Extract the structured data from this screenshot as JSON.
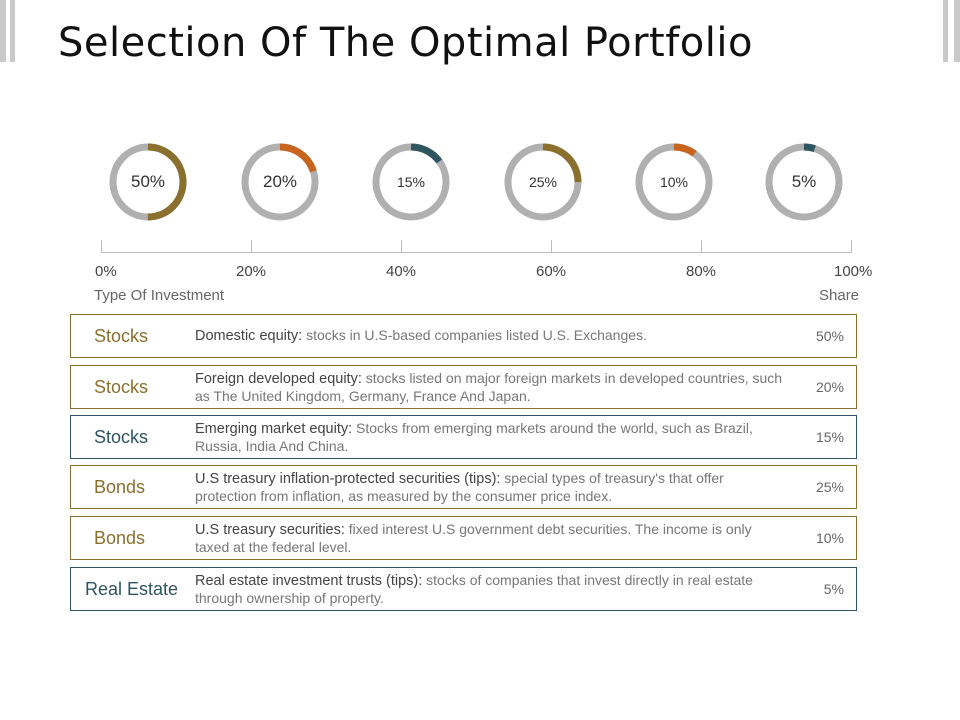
{
  "title": "Selection Of The Optimal Portfolio",
  "colors": {
    "gold": "#8a6f2e",
    "orange": "#c8641e",
    "teal": "#2f5560",
    "track": "#b0b0b0"
  },
  "donuts": [
    {
      "label": "50%",
      "value": 50,
      "color": "#8a6f2e"
    },
    {
      "label": "20%",
      "value": 20,
      "color": "#c8641e"
    },
    {
      "label": "15%",
      "value": 15,
      "color": "#2f5560"
    },
    {
      "label": "25%",
      "value": 25,
      "color": "#8a6f2e"
    },
    {
      "label": "10%",
      "value": 10,
      "color": "#c8641e"
    },
    {
      "label": "5%",
      "value": 5,
      "color": "#2f5560"
    }
  ],
  "axis": {
    "ticks": [
      "0%",
      "20%",
      "40%",
      "60%",
      "80%",
      "100%"
    ]
  },
  "columns": {
    "type": "Type Of Investment",
    "share": "Share"
  },
  "rows": [
    {
      "category": "Stocks",
      "title": "Domestic equity:",
      "text": " stocks in U.S-based companies listed U.S. Exchanges.",
      "share": "50%"
    },
    {
      "category": "Stocks",
      "title": "Foreign developed equity:",
      "text": " stocks listed on major foreign markets in developed countries, such as The United Kingdom, Germany, France And Japan.",
      "share": "20%"
    },
    {
      "category": "Stocks",
      "title": "Emerging market equity:",
      "text": " Stocks from emerging markets around the world, such as Brazil, Russia, India And China.",
      "share": "15%"
    },
    {
      "category": "Bonds",
      "title": " U.S treasury inflation-protected securities (tips):",
      "text": " special types of treasury's that offer protection from inflation, as measured by the consumer price index.",
      "share": "25%"
    },
    {
      "category": "Bonds",
      "title": " U.S treasury securities:",
      "text": " fixed interest U.S government debt securities. The income is only taxed at the federal level.",
      "share": "10%"
    },
    {
      "category": "Real Estate",
      "title": " Real estate investment trusts (tips):",
      "text": " stocks of companies that invest directly in real estate through ownership of property.",
      "share": "5%"
    }
  ]
}
